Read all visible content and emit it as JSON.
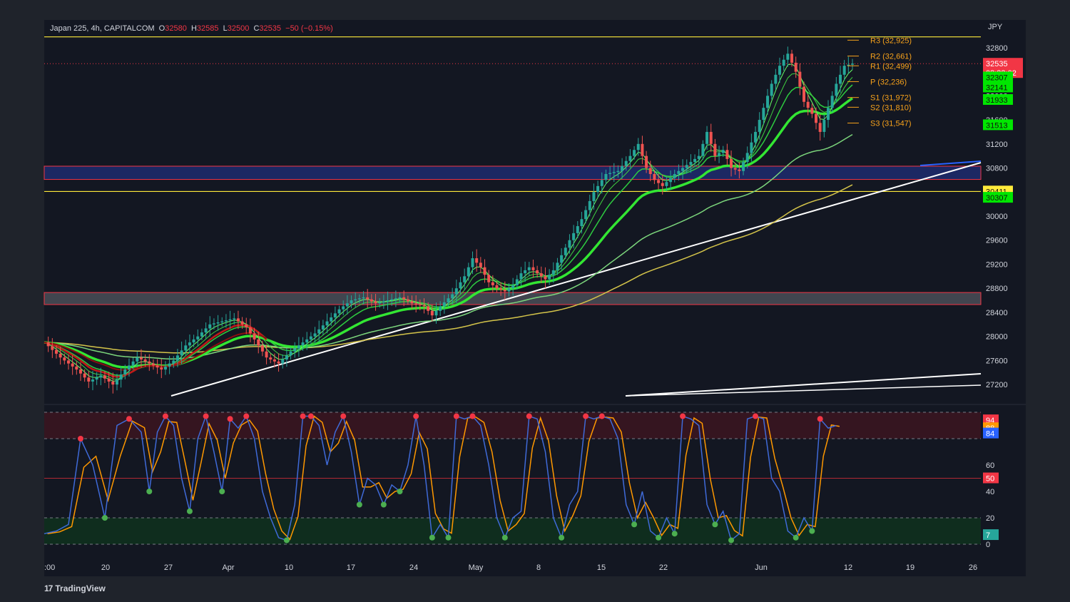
{
  "header": {
    "symbol": "Japan 225, 4h, CAPITALCOM",
    "o_label": "O",
    "o_value": "32580",
    "h_label": "H",
    "h_value": "32585",
    "l_label": "L",
    "l_value": "32500",
    "c_label": "C",
    "c_value": "32535",
    "change": "−50 (−0.15%)"
  },
  "currency": "JPY",
  "footer": {
    "brand": "TradingView"
  },
  "colors": {
    "bg": "#131722",
    "up": "#26a69a",
    "down": "#ef5350",
    "pivot": "#f7a21b"
  },
  "chart_data": [
    {
      "type": "line",
      "name": "price",
      "x_ticks": [
        ":00",
        "20",
        "27",
        "Apr",
        "10",
        "17",
        "24",
        "May",
        "8",
        "15",
        "22",
        "Jun",
        "12",
        "19",
        "26"
      ],
      "y_ticks": [
        32800,
        32400,
        32000,
        31600,
        31200,
        30800,
        30400,
        30000,
        29600,
        29200,
        28800,
        28400,
        28000,
        27600,
        27200
      ],
      "ylim": [
        27000,
        33000
      ],
      "close_path": [
        [
          0,
          27900
        ],
        [
          4,
          27650
        ],
        [
          8,
          27450
        ],
        [
          11,
          27250
        ],
        [
          14,
          27350
        ],
        [
          17,
          27200
        ],
        [
          20,
          27450
        ],
        [
          23,
          27650
        ],
        [
          26,
          27550
        ],
        [
          29,
          27450
        ],
        [
          32,
          27600
        ],
        [
          35,
          27850
        ],
        [
          38,
          28000
        ],
        [
          41,
          28200
        ],
        [
          44,
          28250
        ],
        [
          47,
          28300
        ],
        [
          50,
          28150
        ],
        [
          53,
          27850
        ],
        [
          55,
          27650
        ],
        [
          58,
          27550
        ],
        [
          61,
          27750
        ],
        [
          64,
          27900
        ],
        [
          67,
          28050
        ],
        [
          70,
          28250
        ],
        [
          73,
          28450
        ],
        [
          76,
          28600
        ],
        [
          79,
          28650
        ],
        [
          82,
          28550
        ],
        [
          85,
          28600
        ],
        [
          88,
          28650
        ],
        [
          91,
          28550
        ],
        [
          94,
          28500
        ],
        [
          96,
          28350
        ],
        [
          98,
          28500
        ],
        [
          101,
          28700
        ],
        [
          104,
          29000
        ],
        [
          106,
          29300
        ],
        [
          108,
          29150
        ],
        [
          110,
          28900
        ],
        [
          112,
          28800
        ],
        [
          114,
          28750
        ],
        [
          116,
          28850
        ],
        [
          118,
          29050
        ],
        [
          120,
          29150
        ],
        [
          122,
          29050
        ],
        [
          124,
          28950
        ],
        [
          126,
          29100
        ],
        [
          128,
          29350
        ],
        [
          130,
          29600
        ],
        [
          133,
          29950
        ],
        [
          136,
          30400
        ],
        [
          139,
          30700
        ],
        [
          142,
          30750
        ],
        [
          145,
          31000
        ],
        [
          147,
          31200
        ],
        [
          149,
          30800
        ],
        [
          151,
          30600
        ],
        [
          153,
          30500
        ],
        [
          156,
          30700
        ],
        [
          159,
          30850
        ],
        [
          162,
          31000
        ],
        [
          164,
          31400
        ],
        [
          166,
          31000
        ],
        [
          168,
          31100
        ],
        [
          170,
          30800
        ],
        [
          172,
          30750
        ],
        [
          174,
          31050
        ],
        [
          176,
          31400
        ],
        [
          178,
          31800
        ],
        [
          180,
          32200
        ],
        [
          182,
          32500
        ],
        [
          184,
          32700
        ],
        [
          186,
          32400
        ],
        [
          188,
          31900
        ],
        [
          190,
          31700
        ],
        [
          192,
          31400
        ],
        [
          194,
          31800
        ],
        [
          196,
          32200
        ],
        [
          198,
          32500
        ],
        [
          200,
          32535
        ]
      ],
      "pivots": [
        {
          "label": "R3",
          "value": 32925,
          "text": "R3 (32,925)"
        },
        {
          "label": "R2",
          "value": 32661,
          "text": "R2 (32,661)"
        },
        {
          "label": "R1",
          "value": 32499,
          "text": "R1 (32,499)"
        },
        {
          "label": "P",
          "value": 32236,
          "text": "P (32,236)"
        },
        {
          "label": "S1",
          "value": 31972,
          "text": "S1 (31,972)"
        },
        {
          "label": "S2",
          "value": 31810,
          "text": "S2 (31,810)"
        },
        {
          "label": "S3",
          "value": 31547,
          "text": "S3 (31,547)"
        }
      ],
      "price_badges": [
        {
          "text": "32535",
          "sub": "03:33:02",
          "color": "#f23645",
          "value": 32535
        },
        {
          "text": "32307",
          "color": "#00e600",
          "value": 32307
        },
        {
          "text": "32141",
          "color": "#00e600",
          "value": 32141
        },
        {
          "text": "31933",
          "color": "#00e600",
          "value": 31933
        },
        {
          "text": "31513",
          "color": "#00e600",
          "value": 31513
        },
        {
          "text": "30411",
          "color": "#ffeb3b",
          "value": 30411
        },
        {
          "text": "30307",
          "color": "#00e600",
          "value": 30307
        }
      ],
      "zones": [
        {
          "from": 30610,
          "to": 30830,
          "color": "#1e2c6e"
        },
        {
          "from": 28530,
          "to": 28730,
          "color": "#4a4d57"
        }
      ],
      "hlines": [
        {
          "value": 32980,
          "color": "#ffeb3b"
        },
        {
          "value": 30410,
          "color": "#ffeb3b"
        }
      ]
    },
    {
      "type": "line",
      "name": "stochastic",
      "ylim": [
        0,
        100
      ],
      "y_ticks": [
        60,
        40,
        20,
        0
      ],
      "levels": [
        80,
        50,
        20
      ],
      "badges": [
        {
          "text": "94",
          "color": "#f23645",
          "value": 94
        },
        {
          "text": "88",
          "color": "#ff9800",
          "value": 88
        },
        {
          "text": "84",
          "color": "#2962ff",
          "value": 84
        },
        {
          "text": "50",
          "color": "#f23645",
          "value": 50
        },
        {
          "text": "7",
          "color": "#26a69a",
          "value": 7
        }
      ],
      "k": [
        [
          0,
          8
        ],
        [
          3,
          10
        ],
        [
          6,
          15
        ],
        [
          9,
          80
        ],
        [
          12,
          60
        ],
        [
          15,
          20
        ],
        [
          18,
          90
        ],
        [
          21,
          95
        ],
        [
          24,
          85
        ],
        [
          26,
          40
        ],
        [
          28,
          85
        ],
        [
          30,
          97
        ],
        [
          32,
          90
        ],
        [
          34,
          50
        ],
        [
          36,
          25
        ],
        [
          38,
          80
        ],
        [
          40,
          97
        ],
        [
          42,
          70
        ],
        [
          44,
          40
        ],
        [
          46,
          95
        ],
        [
          48,
          88
        ],
        [
          50,
          97
        ],
        [
          52,
          80
        ],
        [
          54,
          40
        ],
        [
          56,
          20
        ],
        [
          58,
          5
        ],
        [
          60,
          3
        ],
        [
          62,
          30
        ],
        [
          64,
          97
        ],
        [
          66,
          97
        ],
        [
          68,
          90
        ],
        [
          70,
          60
        ],
        [
          72,
          85
        ],
        [
          74,
          97
        ],
        [
          76,
          70
        ],
        [
          78,
          30
        ],
        [
          80,
          50
        ],
        [
          82,
          45
        ],
        [
          84,
          30
        ],
        [
          86,
          45
        ],
        [
          88,
          40
        ],
        [
          90,
          60
        ],
        [
          92,
          97
        ],
        [
          94,
          60
        ],
        [
          96,
          5
        ],
        [
          98,
          15
        ],
        [
          100,
          5
        ],
        [
          102,
          97
        ],
        [
          104,
          95
        ],
        [
          106,
          97
        ],
        [
          108,
          90
        ],
        [
          110,
          60
        ],
        [
          112,
          20
        ],
        [
          114,
          5
        ],
        [
          116,
          20
        ],
        [
          118,
          25
        ],
        [
          120,
          97
        ],
        [
          122,
          95
        ],
        [
          124,
          70
        ],
        [
          126,
          20
        ],
        [
          128,
          5
        ],
        [
          130,
          30
        ],
        [
          132,
          40
        ],
        [
          134,
          97
        ],
        [
          136,
          95
        ],
        [
          138,
          97
        ],
        [
          140,
          95
        ],
        [
          142,
          80
        ],
        [
          144,
          30
        ],
        [
          146,
          15
        ],
        [
          148,
          40
        ],
        [
          150,
          10
        ],
        [
          152,
          5
        ],
        [
          154,
          20
        ],
        [
          156,
          8
        ],
        [
          158,
          97
        ],
        [
          160,
          95
        ],
        [
          162,
          90
        ],
        [
          164,
          30
        ],
        [
          166,
          15
        ],
        [
          168,
          25
        ],
        [
          170,
          3
        ],
        [
          172,
          8
        ],
        [
          174,
          95
        ],
        [
          176,
          97
        ],
        [
          178,
          95
        ],
        [
          180,
          50
        ],
        [
          182,
          40
        ],
        [
          184,
          10
        ],
        [
          186,
          5
        ],
        [
          188,
          20
        ],
        [
          190,
          10
        ],
        [
          192,
          95
        ],
        [
          194,
          88
        ],
        [
          196,
          90
        ]
      ]
    }
  ]
}
